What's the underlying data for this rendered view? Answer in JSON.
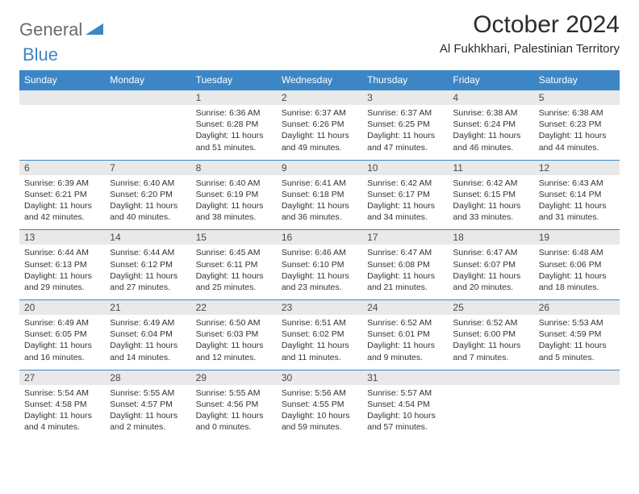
{
  "logo": {
    "general": "General",
    "blue": "Blue"
  },
  "header": {
    "month_title": "October 2024",
    "location": "Al Fukhkhari, Palestinian Territory"
  },
  "colors": {
    "header_bg": "#3d86c6",
    "header_text": "#ffffff",
    "daynum_bg": "#e9e9e9",
    "daynum_text": "#4a4a4a",
    "cell_text": "#333333",
    "row_border": "#3d86c6",
    "page_bg": "#ffffff",
    "logo_gray": "#6b6b6b",
    "logo_blue": "#3d86c6"
  },
  "typography": {
    "title_fontsize": 30,
    "location_fontsize": 15,
    "dayheader_fontsize": 12,
    "daynum_fontsize": 12,
    "body_fontsize": 10.5
  },
  "weekdays": [
    "Sunday",
    "Monday",
    "Tuesday",
    "Wednesday",
    "Thursday",
    "Friday",
    "Saturday"
  ],
  "leading_blanks": 2,
  "days": [
    {
      "n": "1",
      "sunrise": "Sunrise: 6:36 AM",
      "sunset": "Sunset: 6:28 PM",
      "day1": "Daylight: 11 hours",
      "day2": "and 51 minutes."
    },
    {
      "n": "2",
      "sunrise": "Sunrise: 6:37 AM",
      "sunset": "Sunset: 6:26 PM",
      "day1": "Daylight: 11 hours",
      "day2": "and 49 minutes."
    },
    {
      "n": "3",
      "sunrise": "Sunrise: 6:37 AM",
      "sunset": "Sunset: 6:25 PM",
      "day1": "Daylight: 11 hours",
      "day2": "and 47 minutes."
    },
    {
      "n": "4",
      "sunrise": "Sunrise: 6:38 AM",
      "sunset": "Sunset: 6:24 PM",
      "day1": "Daylight: 11 hours",
      "day2": "and 46 minutes."
    },
    {
      "n": "5",
      "sunrise": "Sunrise: 6:38 AM",
      "sunset": "Sunset: 6:23 PM",
      "day1": "Daylight: 11 hours",
      "day2": "and 44 minutes."
    },
    {
      "n": "6",
      "sunrise": "Sunrise: 6:39 AM",
      "sunset": "Sunset: 6:21 PM",
      "day1": "Daylight: 11 hours",
      "day2": "and 42 minutes."
    },
    {
      "n": "7",
      "sunrise": "Sunrise: 6:40 AM",
      "sunset": "Sunset: 6:20 PM",
      "day1": "Daylight: 11 hours",
      "day2": "and 40 minutes."
    },
    {
      "n": "8",
      "sunrise": "Sunrise: 6:40 AM",
      "sunset": "Sunset: 6:19 PM",
      "day1": "Daylight: 11 hours",
      "day2": "and 38 minutes."
    },
    {
      "n": "9",
      "sunrise": "Sunrise: 6:41 AM",
      "sunset": "Sunset: 6:18 PM",
      "day1": "Daylight: 11 hours",
      "day2": "and 36 minutes."
    },
    {
      "n": "10",
      "sunrise": "Sunrise: 6:42 AM",
      "sunset": "Sunset: 6:17 PM",
      "day1": "Daylight: 11 hours",
      "day2": "and 34 minutes."
    },
    {
      "n": "11",
      "sunrise": "Sunrise: 6:42 AM",
      "sunset": "Sunset: 6:15 PM",
      "day1": "Daylight: 11 hours",
      "day2": "and 33 minutes."
    },
    {
      "n": "12",
      "sunrise": "Sunrise: 6:43 AM",
      "sunset": "Sunset: 6:14 PM",
      "day1": "Daylight: 11 hours",
      "day2": "and 31 minutes."
    },
    {
      "n": "13",
      "sunrise": "Sunrise: 6:44 AM",
      "sunset": "Sunset: 6:13 PM",
      "day1": "Daylight: 11 hours",
      "day2": "and 29 minutes."
    },
    {
      "n": "14",
      "sunrise": "Sunrise: 6:44 AM",
      "sunset": "Sunset: 6:12 PM",
      "day1": "Daylight: 11 hours",
      "day2": "and 27 minutes."
    },
    {
      "n": "15",
      "sunrise": "Sunrise: 6:45 AM",
      "sunset": "Sunset: 6:11 PM",
      "day1": "Daylight: 11 hours",
      "day2": "and 25 minutes."
    },
    {
      "n": "16",
      "sunrise": "Sunrise: 6:46 AM",
      "sunset": "Sunset: 6:10 PM",
      "day1": "Daylight: 11 hours",
      "day2": "and 23 minutes."
    },
    {
      "n": "17",
      "sunrise": "Sunrise: 6:47 AM",
      "sunset": "Sunset: 6:08 PM",
      "day1": "Daylight: 11 hours",
      "day2": "and 21 minutes."
    },
    {
      "n": "18",
      "sunrise": "Sunrise: 6:47 AM",
      "sunset": "Sunset: 6:07 PM",
      "day1": "Daylight: 11 hours",
      "day2": "and 20 minutes."
    },
    {
      "n": "19",
      "sunrise": "Sunrise: 6:48 AM",
      "sunset": "Sunset: 6:06 PM",
      "day1": "Daylight: 11 hours",
      "day2": "and 18 minutes."
    },
    {
      "n": "20",
      "sunrise": "Sunrise: 6:49 AM",
      "sunset": "Sunset: 6:05 PM",
      "day1": "Daylight: 11 hours",
      "day2": "and 16 minutes."
    },
    {
      "n": "21",
      "sunrise": "Sunrise: 6:49 AM",
      "sunset": "Sunset: 6:04 PM",
      "day1": "Daylight: 11 hours",
      "day2": "and 14 minutes."
    },
    {
      "n": "22",
      "sunrise": "Sunrise: 6:50 AM",
      "sunset": "Sunset: 6:03 PM",
      "day1": "Daylight: 11 hours",
      "day2": "and 12 minutes."
    },
    {
      "n": "23",
      "sunrise": "Sunrise: 6:51 AM",
      "sunset": "Sunset: 6:02 PM",
      "day1": "Daylight: 11 hours",
      "day2": "and 11 minutes."
    },
    {
      "n": "24",
      "sunrise": "Sunrise: 6:52 AM",
      "sunset": "Sunset: 6:01 PM",
      "day1": "Daylight: 11 hours",
      "day2": "and 9 minutes."
    },
    {
      "n": "25",
      "sunrise": "Sunrise: 6:52 AM",
      "sunset": "Sunset: 6:00 PM",
      "day1": "Daylight: 11 hours",
      "day2": "and 7 minutes."
    },
    {
      "n": "26",
      "sunrise": "Sunrise: 5:53 AM",
      "sunset": "Sunset: 4:59 PM",
      "day1": "Daylight: 11 hours",
      "day2": "and 5 minutes."
    },
    {
      "n": "27",
      "sunrise": "Sunrise: 5:54 AM",
      "sunset": "Sunset: 4:58 PM",
      "day1": "Daylight: 11 hours",
      "day2": "and 4 minutes."
    },
    {
      "n": "28",
      "sunrise": "Sunrise: 5:55 AM",
      "sunset": "Sunset: 4:57 PM",
      "day1": "Daylight: 11 hours",
      "day2": "and 2 minutes."
    },
    {
      "n": "29",
      "sunrise": "Sunrise: 5:55 AM",
      "sunset": "Sunset: 4:56 PM",
      "day1": "Daylight: 11 hours",
      "day2": "and 0 minutes."
    },
    {
      "n": "30",
      "sunrise": "Sunrise: 5:56 AM",
      "sunset": "Sunset: 4:55 PM",
      "day1": "Daylight: 10 hours",
      "day2": "and 59 minutes."
    },
    {
      "n": "31",
      "sunrise": "Sunrise: 5:57 AM",
      "sunset": "Sunset: 4:54 PM",
      "day1": "Daylight: 10 hours",
      "day2": "and 57 minutes."
    }
  ]
}
